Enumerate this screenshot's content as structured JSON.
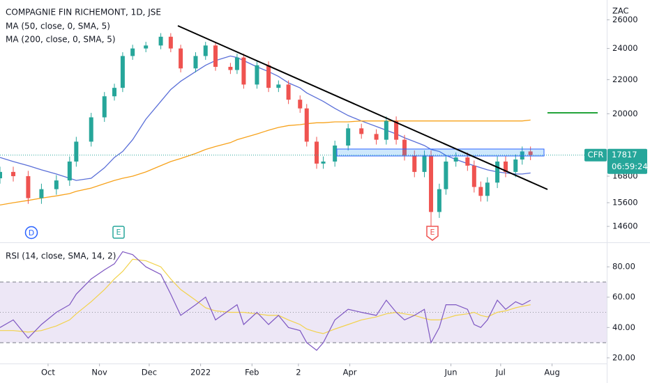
{
  "chart_data": [
    {
      "type": "candlestick",
      "title": "COMPAGNIE FIN RICHEMONT, 1D, JSE",
      "unit": "ZAC",
      "symbol": "CFR",
      "countdown": "06:59:24",
      "events": [
        "D",
        "E",
        "E"
      ],
      "log": true,
      "xlim": [
        1,
        367
      ],
      "ylim": [
        14046,
        27480
      ],
      "yticks": [
        26000,
        24000,
        22000,
        20000,
        16800,
        15600,
        14600
      ],
      "up_color": "#26a69a",
      "down_color": "#ef5350",
      "x": [
        1,
        9,
        18,
        26,
        35,
        43,
        47,
        56,
        64,
        70,
        75,
        81,
        89,
        98,
        104,
        110,
        119,
        125,
        131,
        140,
        144,
        148,
        156,
        163,
        169,
        175,
        182,
        186,
        192,
        196,
        203,
        211,
        219,
        228,
        234,
        240,
        245,
        251,
        257,
        261,
        266,
        270,
        276,
        283,
        287,
        291,
        295,
        301,
        306,
        312,
        316,
        321
      ],
      "open": [
        16700,
        17000,
        16800,
        15800,
        16200,
        16600,
        17500,
        18500,
        19800,
        21000,
        21500,
        23500,
        24000,
        24200,
        24800,
        24000,
        22700,
        23500,
        24200,
        22800,
        22600,
        23400,
        21700,
        22900,
        21500,
        21700,
        20800,
        20300,
        18500,
        17400,
        17500,
        18300,
        19200,
        18900,
        18600,
        19600,
        18600,
        17800,
        17000,
        17800,
        15200,
        16200,
        17500,
        17700,
        17300,
        16300,
        15900,
        16500,
        17500,
        17000,
        17600,
        18000
      ],
      "high": [
        17250,
        17250,
        17050,
        16450,
        16850,
        17750,
        18750,
        20050,
        21250,
        21750,
        23750,
        24250,
        24450,
        25050,
        25050,
        24250,
        23750,
        24450,
        24450,
        23050,
        23650,
        23650,
        23150,
        23150,
        21950,
        21950,
        21050,
        20550,
        18750,
        17750,
        18550,
        19450,
        19450,
        19150,
        19850,
        19850,
        18850,
        18050,
        18050,
        18050,
        16450,
        17750,
        17950,
        17950,
        17550,
        16550,
        16750,
        17750,
        17750,
        17850,
        18250,
        18250
      ],
      "low": [
        16450,
        16550,
        15550,
        15550,
        15950,
        16350,
        17250,
        18250,
        19550,
        20750,
        21250,
        23250,
        23750,
        23950,
        23750,
        22450,
        22450,
        23250,
        22550,
        22350,
        22350,
        21450,
        21450,
        21250,
        21250,
        20550,
        20050,
        18250,
        17150,
        17150,
        17250,
        18050,
        18650,
        18350,
        18350,
        18350,
        17550,
        16750,
        16750,
        14600,
        14950,
        15950,
        17250,
        17050,
        16050,
        15650,
        15650,
        16250,
        16750,
        16750,
        17350,
        17567
      ],
      "close": [
        17000,
        16800,
        15800,
        16200,
        16600,
        17500,
        18500,
        19800,
        21000,
        21500,
        23500,
        24000,
        24200,
        24800,
        24000,
        22700,
        23500,
        24200,
        22800,
        22600,
        23400,
        21700,
        22900,
        21500,
        21700,
        20800,
        20300,
        18500,
        17400,
        17500,
        18300,
        19200,
        18900,
        18600,
        19600,
        18600,
        17800,
        17000,
        17800,
        15200,
        16200,
        17500,
        17700,
        17300,
        16300,
        15900,
        16500,
        17500,
        17000,
        17600,
        18000,
        17817
      ],
      "lines": [
        {
          "name": "MA (50, close, 0, SMA, 5)",
          "color": "#5a6fd8",
          "values": [
            17700,
            17500,
            17300,
            17100,
            16900,
            16700,
            16600,
            16700,
            17200,
            17700,
            18000,
            18600,
            19700,
            20700,
            21400,
            21900,
            22500,
            22900,
            23200,
            23500,
            23400,
            23200,
            22800,
            22500,
            22200,
            21800,
            21500,
            21200,
            20900,
            20700,
            20300,
            19900,
            19600,
            19300,
            19100,
            18900,
            18700,
            18500,
            18300,
            18100,
            18000,
            17800,
            17600,
            17400,
            17300,
            17200,
            17100,
            17000,
            16950,
            16900,
            16900,
            16950
          ]
        },
        {
          "name": "MA (200, close, 0, SMA, 5)",
          "color": "#f7a21b",
          "values": [
            15500,
            15600,
            15700,
            15800,
            15900,
            16000,
            16100,
            16250,
            16450,
            16600,
            16700,
            16800,
            17000,
            17300,
            17500,
            17650,
            17900,
            18100,
            18250,
            18450,
            18600,
            18700,
            18900,
            19100,
            19250,
            19350,
            19400,
            19450,
            19500,
            19500,
            19550,
            19550,
            19600,
            19600,
            19600,
            19600,
            19600,
            19600,
            19600,
            19600,
            19600,
            19600,
            19600,
            19600,
            19600,
            19600,
            19600,
            19600,
            19600,
            19600,
            19600,
            19650
          ]
        }
      ]
    },
    {
      "type": "line",
      "title": "RSI (14, close, SMA, 14, 2)",
      "xlim": [
        1,
        367
      ],
      "ylim": [
        17.2,
        94.3
      ],
      "yticks": [
        {
          "value": 80,
          "label": "80.00"
        },
        {
          "value": 60,
          "label": "60.00"
        },
        {
          "value": 40,
          "label": "40.00"
        },
        {
          "value": 20,
          "label": "20.00"
        }
      ],
      "band": [
        30,
        70
      ],
      "middle": 50,
      "band_color": "#ede7f6",
      "xticks": [
        {
          "value": 30,
          "label": "Oct"
        },
        {
          "value": 61,
          "label": "Nov"
        },
        {
          "value": 91,
          "label": "Dec"
        },
        {
          "value": 122,
          "label": "2022"
        },
        {
          "value": 153,
          "label": "Feb"
        },
        {
          "value": 181,
          "label": "2"
        },
        {
          "value": 212,
          "label": "Apr"
        },
        {
          "value": 273,
          "label": "Jun"
        },
        {
          "value": 303,
          "label": "Jul"
        },
        {
          "value": 334,
          "label": "Aug"
        }
      ],
      "x": [
        1,
        9,
        18,
        26,
        35,
        43,
        47,
        56,
        64,
        70,
        75,
        81,
        89,
        98,
        104,
        110,
        119,
        125,
        131,
        140,
        144,
        148,
        156,
        163,
        169,
        175,
        182,
        186,
        192,
        196,
        203,
        211,
        219,
        228,
        234,
        240,
        245,
        251,
        257,
        261,
        266,
        270,
        276,
        283,
        287,
        291,
        295,
        301,
        306,
        312,
        316,
        321
      ],
      "series": [
        {
          "color": "#7e57c2",
          "values": [
            40,
            45,
            33,
            42,
            50,
            55,
            62,
            72,
            78,
            82,
            90,
            88,
            80,
            75,
            62,
            48,
            55,
            60,
            45,
            52,
            55,
            42,
            50,
            42,
            48,
            40,
            38,
            30,
            25,
            30,
            45,
            52,
            50,
            48,
            58,
            50,
            45,
            48,
            52,
            30,
            40,
            55,
            55,
            52,
            42,
            40,
            45,
            58,
            52,
            57,
            55,
            58
          ]
        },
        {
          "color": "#f2d24b",
          "values": [
            38,
            38,
            37,
            38,
            41,
            45,
            49,
            57,
            65,
            72,
            77,
            85,
            84,
            80,
            72,
            65,
            58,
            53,
            51,
            50,
            50,
            50,
            49,
            48,
            48,
            45,
            42,
            39,
            37,
            36,
            39,
            42,
            45,
            47,
            49,
            50,
            49,
            48,
            46,
            45,
            45,
            46,
            48,
            49,
            50,
            48,
            47,
            50,
            51,
            53,
            54,
            55
          ]
        }
      ]
    }
  ]
}
